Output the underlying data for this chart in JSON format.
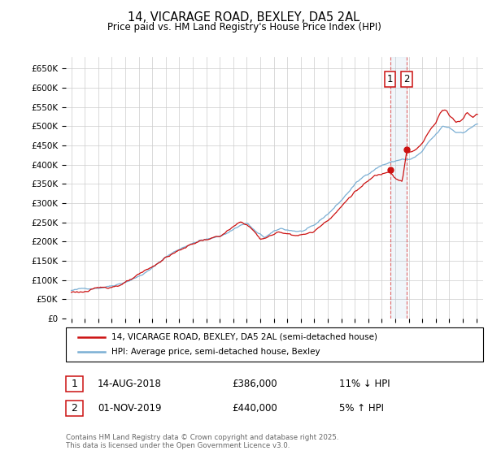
{
  "title": "14, VICARAGE ROAD, BEXLEY, DA5 2AL",
  "subtitle": "Price paid vs. HM Land Registry's House Price Index (HPI)",
  "ylabel_ticks": [
    "£0",
    "£50K",
    "£100K",
    "£150K",
    "£200K",
    "£250K",
    "£300K",
    "£350K",
    "£400K",
    "£450K",
    "£500K",
    "£550K",
    "£600K",
    "£650K"
  ],
  "ytick_values": [
    0,
    50000,
    100000,
    150000,
    200000,
    250000,
    300000,
    350000,
    400000,
    450000,
    500000,
    550000,
    600000,
    650000
  ],
  "hpi_color": "#7bafd4",
  "price_color": "#cc1111",
  "vline_color": "#dd4444",
  "background_color": "#ffffff",
  "grid_color": "#cccccc",
  "legend_label_1": "14, VICARAGE ROAD, BEXLEY, DA5 2AL (semi-detached house)",
  "legend_label_2": "HPI: Average price, semi-detached house, Bexley",
  "annotation_1_label": "1",
  "annotation_1_date": "14-AUG-2018",
  "annotation_1_price": "£386,000",
  "annotation_1_pct": "11% ↓ HPI",
  "annotation_1_year": 2018.62,
  "annotation_1_value": 386000,
  "annotation_2_label": "2",
  "annotation_2_date": "01-NOV-2019",
  "annotation_2_price": "£440,000",
  "annotation_2_pct": "5% ↑ HPI",
  "annotation_2_year": 2019.83,
  "annotation_2_value": 440000,
  "footer": "Contains HM Land Registry data © Crown copyright and database right 2025.\nThis data is licensed under the Open Government Licence v3.0."
}
